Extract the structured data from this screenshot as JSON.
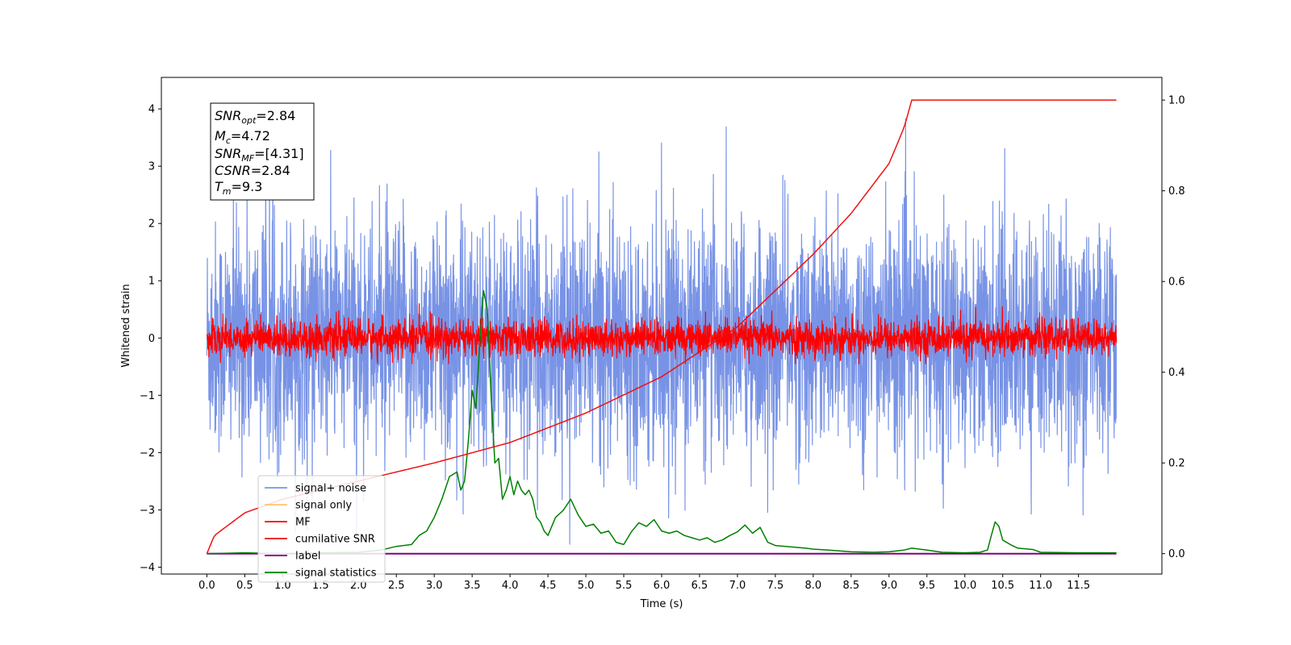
{
  "chart_data": {
    "type": "line",
    "xlabel": "Time (s)",
    "ylabel": "Whitened strain",
    "xlim": [
      -0.6,
      12.6
    ],
    "ylim": [
      -4.12,
      4.55
    ],
    "y2lim": [
      -0.045,
      1.05
    ],
    "x_ticks": [
      "0.0",
      "0.5",
      "1.0",
      "1.5",
      "2.0",
      "2.5",
      "3.0",
      "3.5",
      "4.0",
      "4.5",
      "5.0",
      "5.5",
      "6.0",
      "6.5",
      "7.0",
      "7.5",
      "8.0",
      "8.5",
      "9.0",
      "9.5",
      "10.0",
      "10.5",
      "11.0",
      "11.5"
    ],
    "y_ticks": [
      "4",
      "3",
      "2",
      "1",
      "0",
      "−1",
      "−2",
      "−3",
      "−4"
    ],
    "y2_ticks": [
      "1.0",
      "0.8",
      "0.6",
      "0.4",
      "0.2",
      "0.0"
    ],
    "legend_position": "lower-left",
    "legend": [
      {
        "label": "signal+ noise",
        "color": "#7893e6"
      },
      {
        "label": "signal only",
        "color": "#ffc46e"
      },
      {
        "label": "MF",
        "color": "#ff0000"
      },
      {
        "label": "cumilative SNR",
        "color": "#ee1111"
      },
      {
        "label": "label",
        "color": "#800080"
      },
      {
        "label": "signal statistics",
        "color": "#008000"
      }
    ],
    "annotation": {
      "snr_opt": {
        "sym": "SNR",
        "sub": "opt",
        "val": "=2.84"
      },
      "mc": {
        "sym": "M",
        "sub": "c",
        "val": "=4.72"
      },
      "snr_mf": {
        "sym": "SNR",
        "sub": "MF",
        "val": "=[4.31]"
      },
      "csnr": {
        "sym": "CSNR",
        "val": "=2.84"
      },
      "tm": {
        "sym": "T",
        "sub": "m",
        "val": "=9.3"
      }
    },
    "series": [
      {
        "name": "signal+ noise",
        "axis": "left",
        "x_range": [
          0,
          12
        ],
        "noise_std": 1.0,
        "envelope": [
          -3.6,
          4.15
        ]
      },
      {
        "name": "MF",
        "axis": "left",
        "x_range": [
          0,
          12
        ],
        "noise_std": 0.15,
        "envelope": [
          -0.45,
          1.0
        ]
      },
      {
        "name": "cumilative SNR",
        "axis": "right",
        "x": [
          0,
          0.1,
          0.5,
          1.0,
          2.0,
          3.0,
          4.0,
          5.0,
          6.0,
          7.0,
          8.0,
          8.5,
          9.0,
          9.2,
          9.3,
          12.0
        ],
        "y": [
          0.0,
          0.04,
          0.09,
          0.12,
          0.16,
          0.2,
          0.245,
          0.31,
          0.39,
          0.5,
          0.66,
          0.75,
          0.86,
          0.94,
          1.0,
          1.0
        ]
      },
      {
        "name": "label",
        "axis": "right",
        "x": [
          0,
          12
        ],
        "y": [
          0.0,
          0.0
        ]
      },
      {
        "name": "signal statistics",
        "axis": "right",
        "x": [
          0.0,
          0.5,
          1.0,
          1.5,
          2.0,
          2.3,
          2.5,
          2.7,
          2.8,
          2.9,
          3.0,
          3.1,
          3.2,
          3.3,
          3.35,
          3.4,
          3.45,
          3.5,
          3.55,
          3.6,
          3.65,
          3.7,
          3.75,
          3.8,
          3.85,
          3.9,
          3.95,
          4.0,
          4.05,
          4.1,
          4.15,
          4.2,
          4.25,
          4.3,
          4.35,
          4.4,
          4.45,
          4.5,
          4.6,
          4.7,
          4.8,
          4.9,
          5.0,
          5.1,
          5.2,
          5.3,
          5.4,
          5.5,
          5.6,
          5.7,
          5.8,
          5.9,
          6.0,
          6.1,
          6.2,
          6.3,
          6.4,
          6.5,
          6.6,
          6.7,
          6.8,
          6.9,
          7.0,
          7.1,
          7.2,
          7.3,
          7.4,
          7.5,
          7.7,
          7.9,
          8.0,
          8.2,
          8.5,
          8.8,
          9.0,
          9.2,
          9.3,
          9.5,
          9.7,
          10.0,
          10.2,
          10.3,
          10.35,
          10.4,
          10.45,
          10.5,
          10.6,
          10.7,
          10.9,
          11.0,
          11.5,
          12.0
        ],
        "y": [
          0.0,
          0.002,
          0.0,
          0.002,
          0.003,
          0.008,
          0.016,
          0.02,
          0.04,
          0.05,
          0.08,
          0.12,
          0.17,
          0.18,
          0.14,
          0.16,
          0.25,
          0.36,
          0.32,
          0.46,
          0.58,
          0.54,
          0.35,
          0.2,
          0.21,
          0.12,
          0.14,
          0.17,
          0.13,
          0.16,
          0.14,
          0.13,
          0.14,
          0.12,
          0.08,
          0.07,
          0.05,
          0.04,
          0.08,
          0.095,
          0.12,
          0.085,
          0.06,
          0.065,
          0.045,
          0.05,
          0.025,
          0.02,
          0.048,
          0.068,
          0.06,
          0.075,
          0.05,
          0.045,
          0.05,
          0.04,
          0.035,
          0.03,
          0.035,
          0.025,
          0.03,
          0.04,
          0.048,
          0.063,
          0.045,
          0.058,
          0.025,
          0.018,
          0.015,
          0.012,
          0.01,
          0.008,
          0.004,
          0.003,
          0.004,
          0.008,
          0.012,
          0.008,
          0.003,
          0.002,
          0.003,
          0.008,
          0.04,
          0.07,
          0.06,
          0.03,
          0.02,
          0.012,
          0.009,
          0.003,
          0.002,
          0.002
        ]
      }
    ]
  }
}
